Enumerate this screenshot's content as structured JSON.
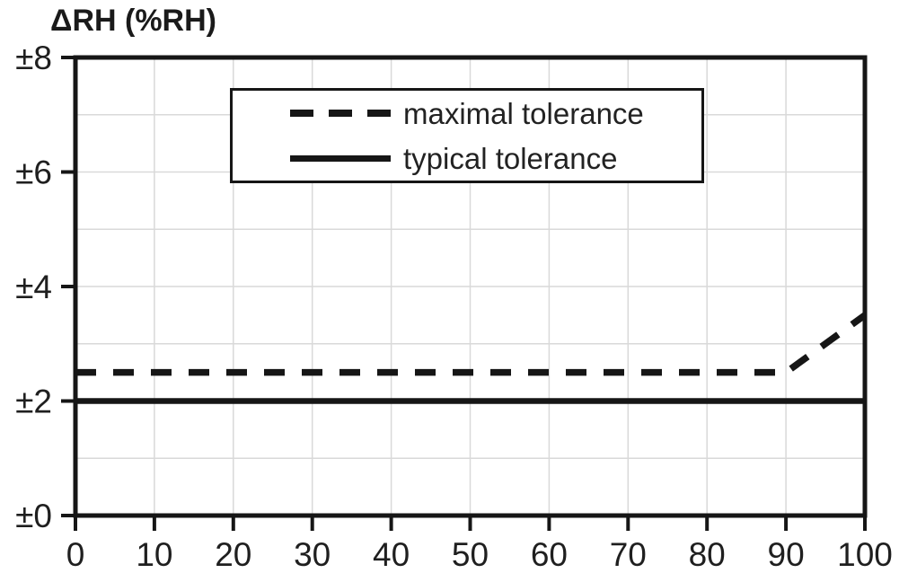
{
  "chart_data": {
    "type": "line",
    "title": "ΔRH (%RH)",
    "xlabel": "",
    "ylabel": "ΔRH (%RH)",
    "xlim": [
      0,
      100
    ],
    "ylim": [
      0,
      8
    ],
    "grid": {
      "on": true,
      "x_step": 10,
      "y_step": 1
    },
    "x_ticks": [
      {
        "v": 0,
        "label": "0"
      },
      {
        "v": 10,
        "label": "10"
      },
      {
        "v": 20,
        "label": "20"
      },
      {
        "v": 30,
        "label": "30"
      },
      {
        "v": 40,
        "label": "40"
      },
      {
        "v": 50,
        "label": "50"
      },
      {
        "v": 60,
        "label": "60"
      },
      {
        "v": 70,
        "label": "70"
      },
      {
        "v": 80,
        "label": "80"
      },
      {
        "v": 90,
        "label": "90"
      },
      {
        "v": 100,
        "label": "100"
      }
    ],
    "y_ticks": [
      {
        "v": 0,
        "label": "±0"
      },
      {
        "v": 2,
        "label": "±2"
      },
      {
        "v": 4,
        "label": "±4"
      },
      {
        "v": 6,
        "label": "±6"
      },
      {
        "v": 8,
        "label": "±8"
      }
    ],
    "series": [
      {
        "name": "maximal tolerance",
        "style": "dashed",
        "points": [
          [
            0,
            2.5
          ],
          [
            90,
            2.5
          ],
          [
            100,
            3.5
          ]
        ]
      },
      {
        "name": "typical tolerance",
        "style": "solid",
        "points": [
          [
            0,
            2
          ],
          [
            100,
            2
          ]
        ]
      }
    ],
    "legend_position": "top-center",
    "colors": {
      "line": "#161616",
      "grid": "#d9d9d9",
      "text": "#1f1f1f",
      "background": "#ffffff"
    }
  }
}
